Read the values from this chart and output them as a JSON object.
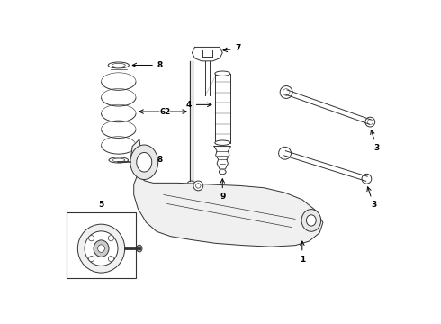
{
  "bg_color": "#ffffff",
  "lc": "#333333",
  "lw": 0.7,
  "figsize": [
    4.9,
    3.6
  ],
  "dpi": 100
}
